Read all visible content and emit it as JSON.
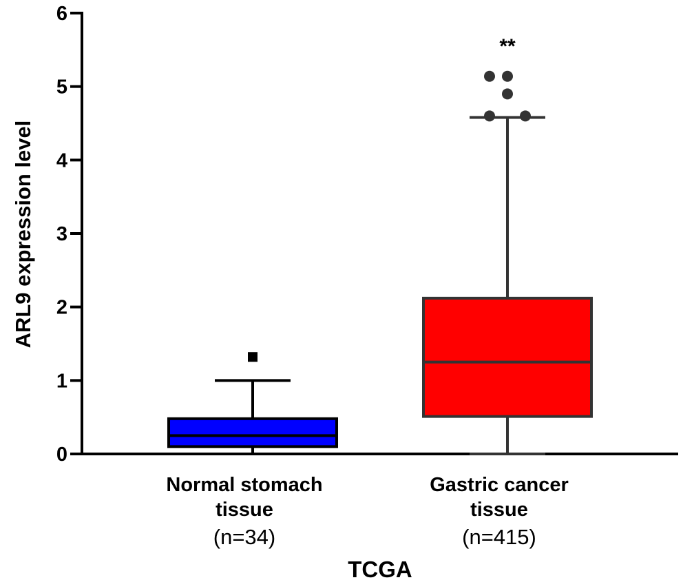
{
  "chart_data": {
    "type": "box",
    "title": "",
    "xlabel": "TCGA",
    "ylabel": "ARL9 expression level",
    "ylim": [
      0,
      6
    ],
    "yticks": [
      0,
      1,
      2,
      3,
      4,
      5,
      6
    ],
    "grid": false,
    "legend": null,
    "groups": [
      {
        "name": "Normal stomach tissue",
        "label_lines": [
          "Normal stomach",
          "tissue"
        ],
        "n_label": "(n=34)",
        "color": "#0000ff",
        "edge_color": "#000000",
        "whisker_low": 0.0,
        "q1": 0.1,
        "median": 0.25,
        "q3": 0.48,
        "whisker_high": 1.0,
        "outliers": [
          1.32
        ],
        "outlier_marker": "square",
        "significance": ""
      },
      {
        "name": "Gastric cancer tissue",
        "label_lines": [
          "Gastric cancer",
          "tissue"
        ],
        "n_label": "(n=415)",
        "color": "#ff0000",
        "edge_color": "#333333",
        "whisker_low": 0.0,
        "q1": 0.51,
        "median": 1.25,
        "q3": 2.12,
        "whisker_high": 4.58,
        "outliers": [
          5.14,
          5.14,
          4.9,
          4.6,
          4.6
        ],
        "outlier_marker": "circle",
        "significance": "**"
      }
    ]
  }
}
